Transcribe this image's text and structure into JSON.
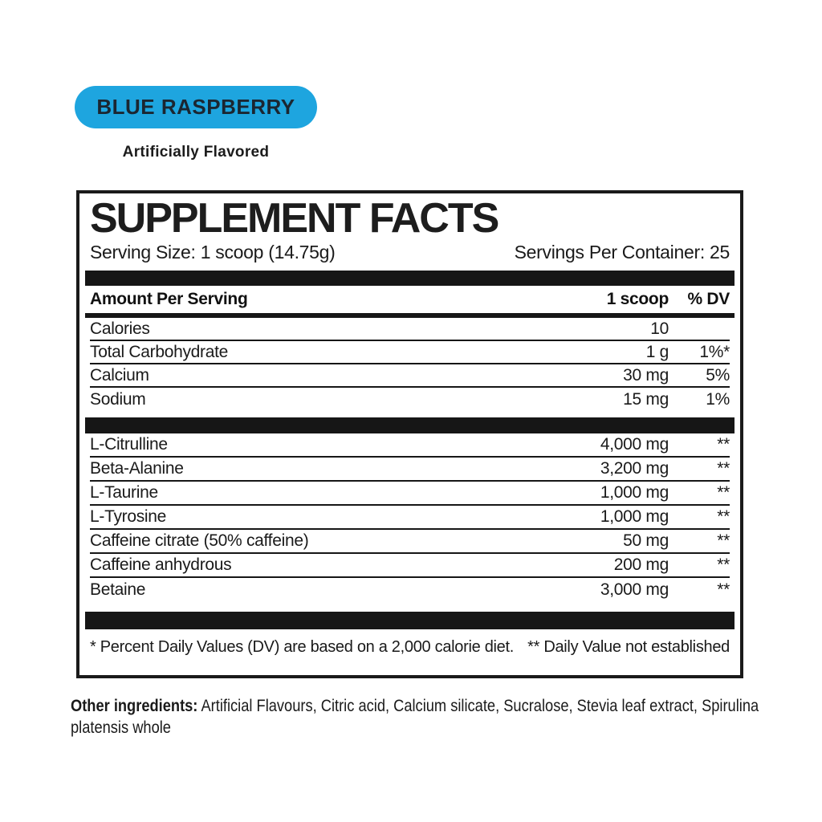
{
  "header": {
    "flavor": "BLUE RASPBERRY",
    "subtitle": "Artificially Flavored",
    "badge_color": "#1ea5df"
  },
  "facts": {
    "title": "SUPPLEMENT FACTS",
    "serving_size": "Serving Size: 1 scoop (14.75g)",
    "servings_per_container": "Servings Per Container: 25",
    "columns": [
      "Amount Per Serving",
      "1 scoop",
      "% DV"
    ],
    "rows_top": [
      {
        "name": "Calories",
        "amount": "10",
        "dv": ""
      },
      {
        "name": "Total Carbohydrate",
        "amount": "1 g",
        "dv": "1%*"
      },
      {
        "name": "Calcium",
        "amount": "30 mg",
        "dv": "5%"
      },
      {
        "name": "Sodium",
        "amount": "15 mg",
        "dv": "1%"
      }
    ],
    "rows_main": [
      {
        "name": "L-Citrulline",
        "amount": "4,000 mg",
        "dv": "**"
      },
      {
        "name": "Beta-Alanine",
        "amount": "3,200 mg",
        "dv": "**"
      },
      {
        "name": "L-Taurine",
        "amount": "1,000 mg",
        "dv": "**"
      },
      {
        "name": "L-Tyrosine",
        "amount": "1,000 mg",
        "dv": "**"
      },
      {
        "name": "Caffeine citrate (50% caffeine)",
        "amount": "50 mg",
        "dv": "**"
      },
      {
        "name": "Caffeine anhydrous",
        "amount": "200 mg",
        "dv": "**"
      },
      {
        "name": "Betaine",
        "amount": "3,000 mg",
        "dv": "**"
      }
    ],
    "footnote_left": "* Percent Daily Values (DV) are based on a 2,000 calorie diet.",
    "footnote_right": "** Daily Value not established"
  },
  "other_ingredients": {
    "label": "Other ingredients:",
    "text": "Artificial Flavours, Citric acid, Calcium silicate, Sucralose, Stevia leaf extract, Spirulina platensis whole"
  }
}
